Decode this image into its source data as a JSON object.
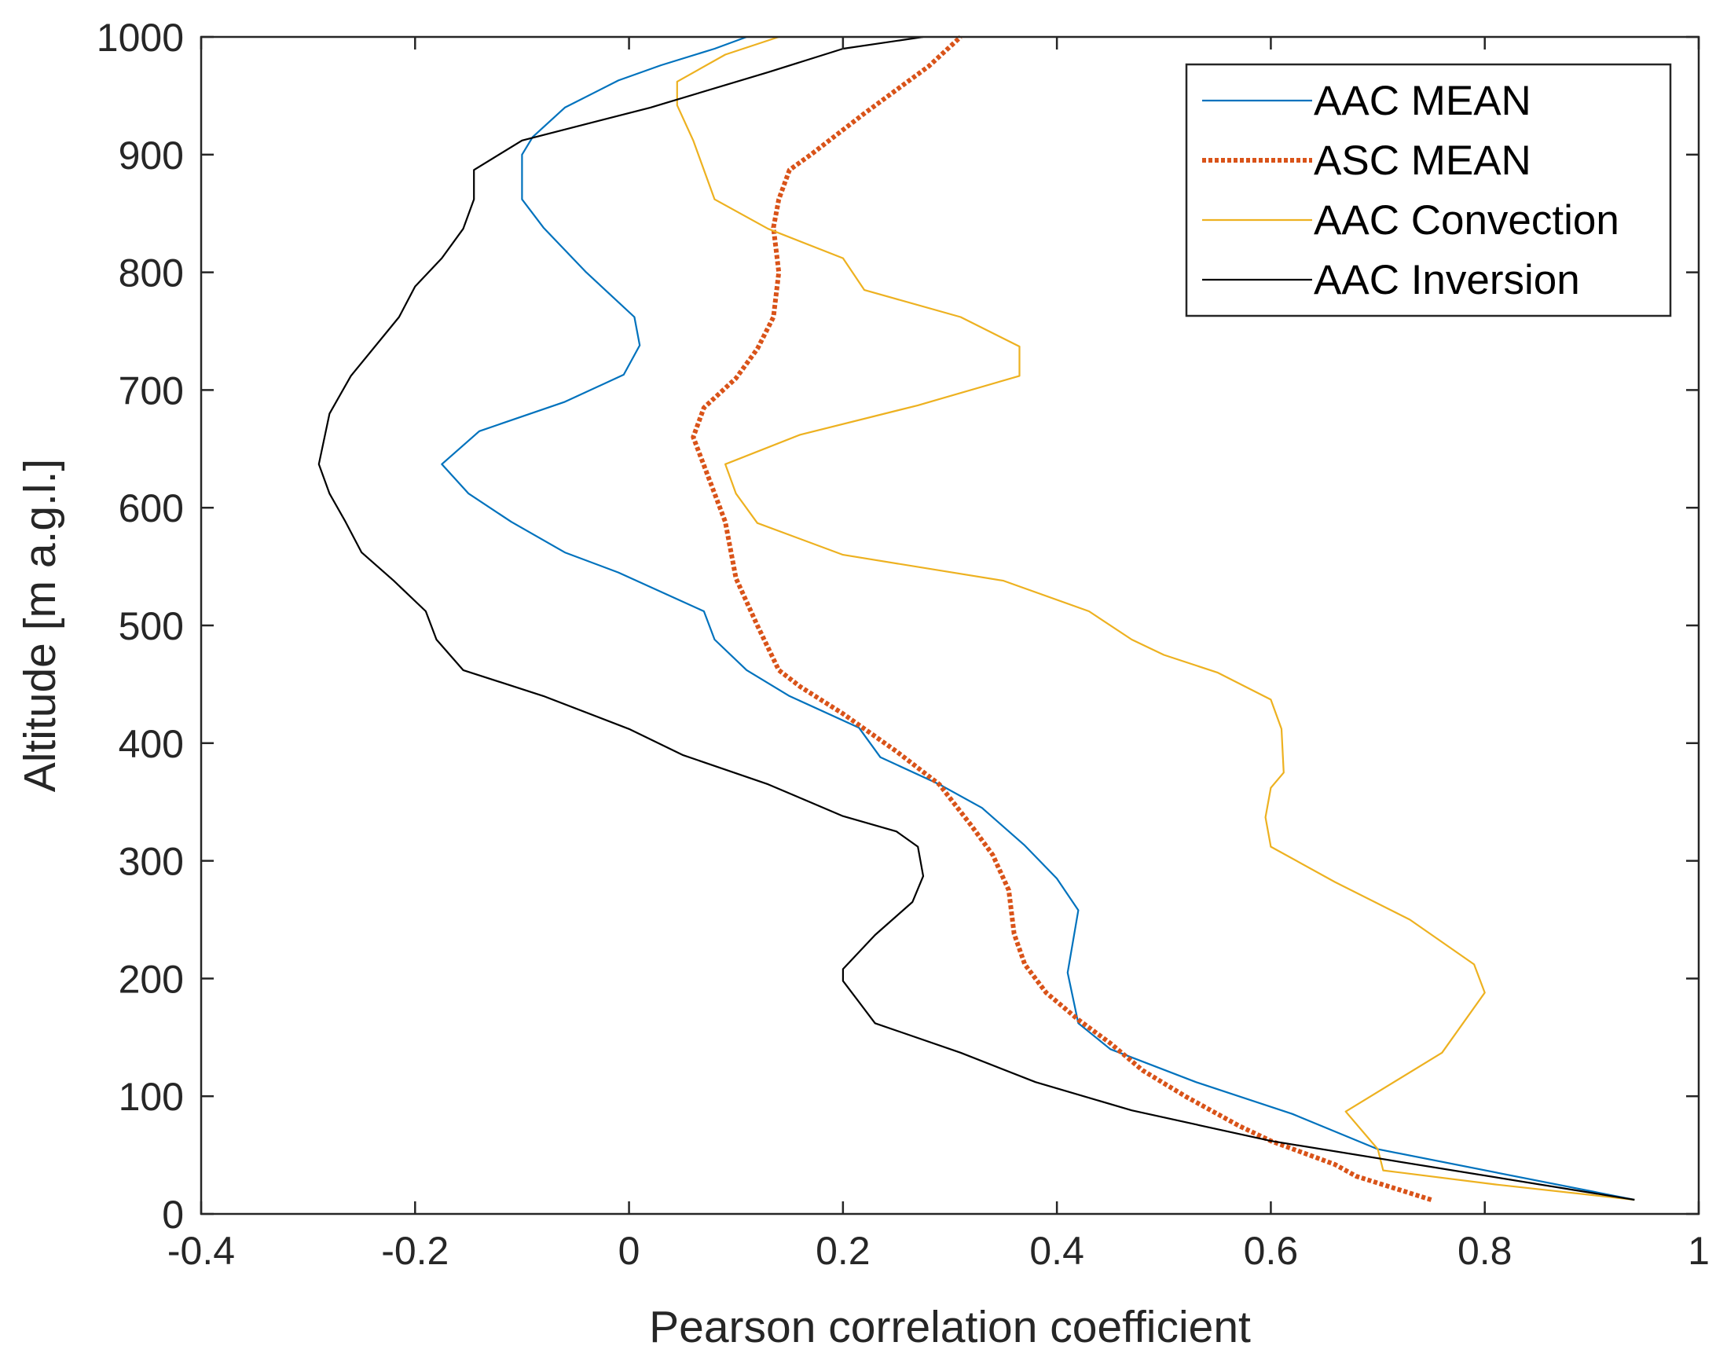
{
  "chart_data": {
    "type": "line",
    "title": "",
    "xlabel": "Pearson correlation coefficient",
    "ylabel": "Altitude [m a.g.l.]",
    "xlim": [
      -0.4,
      1
    ],
    "ylim": [
      0,
      1000
    ],
    "xticks": [
      -0.4,
      -0.2,
      0,
      0.2,
      0.4,
      0.6,
      0.8,
      1
    ],
    "xtick_labels": [
      "-0.4",
      "-0.2",
      "0",
      "0.2",
      "0.4",
      "0.6",
      "0.8",
      "1"
    ],
    "yticks": [
      0,
      100,
      200,
      300,
      400,
      500,
      600,
      700,
      800,
      900,
      1000
    ],
    "ytick_labels": [
      "0",
      "100",
      "200",
      "300",
      "400",
      "500",
      "600",
      "700",
      "800",
      "900",
      "1000"
    ],
    "grid": false,
    "legend_position": "top-right",
    "series": [
      {
        "name": "AAC MEAN",
        "color": "#0072BD",
        "style": "solid",
        "points": [
          [
            0.94,
            12
          ],
          [
            0.7,
            55
          ],
          [
            0.62,
            85
          ],
          [
            0.53,
            112
          ],
          [
            0.45,
            140
          ],
          [
            0.42,
            162
          ],
          [
            0.41,
            205
          ],
          [
            0.42,
            258
          ],
          [
            0.4,
            285
          ],
          [
            0.37,
            313
          ],
          [
            0.33,
            345
          ],
          [
            0.29,
            365
          ],
          [
            0.235,
            388
          ],
          [
            0.215,
            413
          ],
          [
            0.15,
            440
          ],
          [
            0.11,
            462
          ],
          [
            0.08,
            488
          ],
          [
            0.07,
            512
          ],
          [
            -0.01,
            545
          ],
          [
            -0.06,
            562
          ],
          [
            -0.11,
            588
          ],
          [
            -0.15,
            612
          ],
          [
            -0.175,
            637
          ],
          [
            -0.14,
            665
          ],
          [
            -0.06,
            690
          ],
          [
            -0.005,
            713
          ],
          [
            0.01,
            738
          ],
          [
            0.005,
            762
          ],
          [
            -0.04,
            800
          ],
          [
            -0.08,
            838
          ],
          [
            -0.1,
            862
          ],
          [
            -0.1,
            900
          ],
          [
            -0.09,
            915
          ],
          [
            -0.06,
            940
          ],
          [
            -0.01,
            963
          ],
          [
            0.03,
            976
          ],
          [
            0.08,
            990
          ],
          [
            0.11,
            1000
          ]
        ]
      },
      {
        "name": "ASC MEAN",
        "color": "#D95319",
        "style": "dotted",
        "points": [
          [
            0.75,
            12
          ],
          [
            0.68,
            32
          ],
          [
            0.66,
            42
          ],
          [
            0.6,
            62
          ],
          [
            0.57,
            75
          ],
          [
            0.52,
            100
          ],
          [
            0.48,
            122
          ],
          [
            0.45,
            145
          ],
          [
            0.42,
            165
          ],
          [
            0.39,
            188
          ],
          [
            0.37,
            212
          ],
          [
            0.36,
            238
          ],
          [
            0.355,
            275
          ],
          [
            0.34,
            305
          ],
          [
            0.32,
            330
          ],
          [
            0.29,
            365
          ],
          [
            0.25,
            393
          ],
          [
            0.2,
            425
          ],
          [
            0.16,
            448
          ],
          [
            0.14,
            462
          ],
          [
            0.12,
            500
          ],
          [
            0.1,
            540
          ],
          [
            0.09,
            588
          ],
          [
            0.08,
            612
          ],
          [
            0.06,
            660
          ],
          [
            0.07,
            685
          ],
          [
            0.1,
            710
          ],
          [
            0.12,
            735
          ],
          [
            0.135,
            762
          ],
          [
            0.14,
            800
          ],
          [
            0.135,
            838
          ],
          [
            0.14,
            862
          ],
          [
            0.15,
            887
          ],
          [
            0.17,
            900
          ],
          [
            0.22,
            935
          ],
          [
            0.25,
            955
          ],
          [
            0.28,
            975
          ],
          [
            0.31,
            1000
          ]
        ]
      },
      {
        "name": "AAC Convection",
        "color": "#EDB120",
        "style": "solid",
        "points": [
          [
            0.94,
            12
          ],
          [
            0.81,
            25
          ],
          [
            0.705,
            37
          ],
          [
            0.7,
            55
          ],
          [
            0.67,
            87
          ],
          [
            0.76,
            137
          ],
          [
            0.8,
            188
          ],
          [
            0.79,
            212
          ],
          [
            0.73,
            250
          ],
          [
            0.66,
            282
          ],
          [
            0.6,
            312
          ],
          [
            0.595,
            337
          ],
          [
            0.6,
            362
          ],
          [
            0.612,
            375
          ],
          [
            0.61,
            412
          ],
          [
            0.6,
            437
          ],
          [
            0.55,
            460
          ],
          [
            0.5,
            475
          ],
          [
            0.47,
            488
          ],
          [
            0.43,
            512
          ],
          [
            0.35,
            538
          ],
          [
            0.2,
            560
          ],
          [
            0.12,
            587
          ],
          [
            0.1,
            612
          ],
          [
            0.09,
            637
          ],
          [
            0.16,
            662
          ],
          [
            0.27,
            687
          ],
          [
            0.365,
            712
          ],
          [
            0.365,
            737
          ],
          [
            0.31,
            762
          ],
          [
            0.22,
            785
          ],
          [
            0.2,
            812
          ],
          [
            0.13,
            837
          ],
          [
            0.08,
            862
          ],
          [
            0.06,
            912
          ],
          [
            0.045,
            942
          ],
          [
            0.045,
            962
          ],
          [
            0.09,
            985
          ],
          [
            0.14,
            1000
          ]
        ]
      },
      {
        "name": "AAC Inversion",
        "color": "#000000",
        "style": "solid",
        "points": [
          [
            0.94,
            12
          ],
          [
            0.6,
            62
          ],
          [
            0.47,
            88
          ],
          [
            0.38,
            112
          ],
          [
            0.31,
            137
          ],
          [
            0.23,
            162
          ],
          [
            0.2,
            198
          ],
          [
            0.2,
            208
          ],
          [
            0.23,
            237
          ],
          [
            0.265,
            265
          ],
          [
            0.275,
            287
          ],
          [
            0.27,
            312
          ],
          [
            0.25,
            325
          ],
          [
            0.2,
            338
          ],
          [
            0.13,
            365
          ],
          [
            0.05,
            390
          ],
          [
            0.0,
            412
          ],
          [
            -0.08,
            440
          ],
          [
            -0.155,
            462
          ],
          [
            -0.18,
            488
          ],
          [
            -0.19,
            512
          ],
          [
            -0.22,
            538
          ],
          [
            -0.25,
            562
          ],
          [
            -0.265,
            588
          ],
          [
            -0.28,
            612
          ],
          [
            -0.29,
            637
          ],
          [
            -0.28,
            680
          ],
          [
            -0.26,
            712
          ],
          [
            -0.215,
            762
          ],
          [
            -0.2,
            788
          ],
          [
            -0.175,
            812
          ],
          [
            -0.155,
            837
          ],
          [
            -0.145,
            862
          ],
          [
            -0.145,
            887
          ],
          [
            -0.1,
            912
          ],
          [
            0.02,
            940
          ],
          [
            0.13,
            970
          ],
          [
            0.2,
            990
          ],
          [
            0.275,
            1000
          ]
        ]
      }
    ]
  }
}
